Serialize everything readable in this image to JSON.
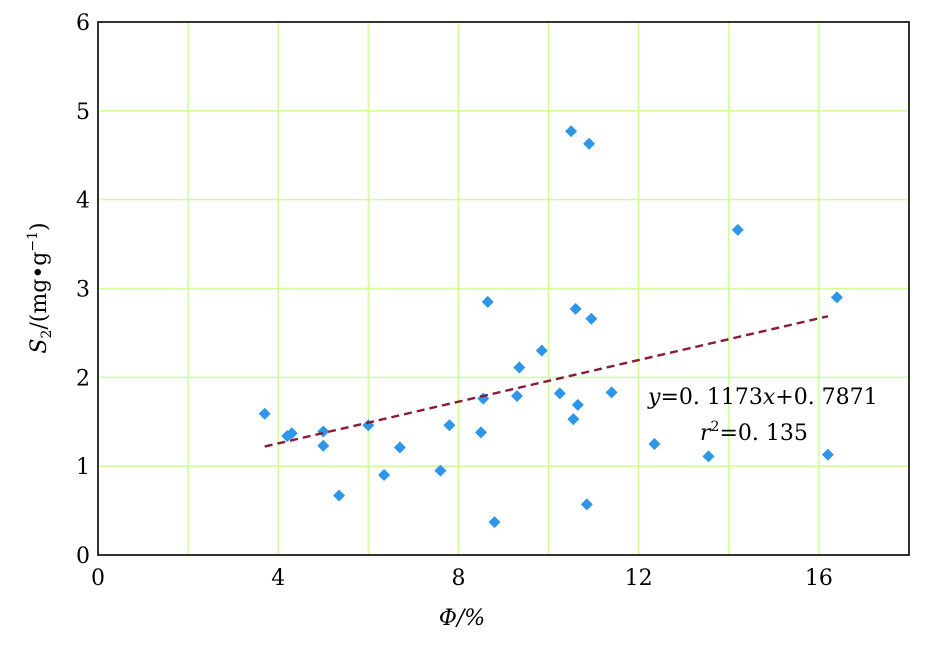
{
  "chart_data": {
    "type": "scatter",
    "xlim": [
      0,
      18
    ],
    "ylim": [
      0,
      6
    ],
    "x_ticks": [
      0,
      4,
      8,
      12,
      16
    ],
    "y_ticks": [
      0,
      1,
      2,
      3,
      4,
      5,
      6
    ],
    "x_grid": [
      2,
      4,
      6,
      8,
      10,
      12,
      14,
      16
    ],
    "y_grid": [
      1,
      2,
      3,
      4,
      5
    ],
    "grid": true,
    "grid_color": "#ccff99",
    "marker_color": "#2e96e8",
    "trend_color": "#8b1a3a",
    "xlabel": "Φ/%",
    "ylabel_main": "S",
    "ylabel_sub": "2",
    "ylabel_rest": "/(mg•g",
    "ylabel_sup": "−1",
    "ylabel_close": ")",
    "points": [
      {
        "x": 3.7,
        "y": 1.59
      },
      {
        "x": 4.2,
        "y": 1.34
      },
      {
        "x": 4.3,
        "y": 1.37
      },
      {
        "x": 5.0,
        "y": 1.39
      },
      {
        "x": 5.0,
        "y": 1.23
      },
      {
        "x": 5.35,
        "y": 0.67
      },
      {
        "x": 6.0,
        "y": 1.46
      },
      {
        "x": 6.35,
        "y": 0.9
      },
      {
        "x": 6.7,
        "y": 1.21
      },
      {
        "x": 7.6,
        "y": 0.95
      },
      {
        "x": 7.8,
        "y": 1.46
      },
      {
        "x": 8.5,
        "y": 1.38
      },
      {
        "x": 8.55,
        "y": 1.76
      },
      {
        "x": 8.65,
        "y": 2.85
      },
      {
        "x": 8.8,
        "y": 0.37
      },
      {
        "x": 9.3,
        "y": 1.79
      },
      {
        "x": 9.35,
        "y": 2.11
      },
      {
        "x": 9.85,
        "y": 2.3
      },
      {
        "x": 10.25,
        "y": 1.82
      },
      {
        "x": 10.5,
        "y": 4.77
      },
      {
        "x": 10.55,
        "y": 1.53
      },
      {
        "x": 10.6,
        "y": 2.77
      },
      {
        "x": 10.65,
        "y": 1.69
      },
      {
        "x": 10.85,
        "y": 0.57
      },
      {
        "x": 10.9,
        "y": 4.63
      },
      {
        "x": 10.95,
        "y": 2.66
      },
      {
        "x": 11.4,
        "y": 1.83
      },
      {
        "x": 12.35,
        "y": 1.25
      },
      {
        "x": 13.55,
        "y": 1.11
      },
      {
        "x": 14.2,
        "y": 3.66
      },
      {
        "x": 16.2,
        "y": 1.13
      },
      {
        "x": 16.4,
        "y": 2.9
      }
    ],
    "trendline": {
      "slope": 0.1173,
      "intercept": 0.7871,
      "x_start": 3.7,
      "x_end": 16.2,
      "style": "dashed"
    },
    "equation": {
      "y_var": "y",
      "eq_text": "=0. 1173",
      "x_var": "x",
      "eq_tail": "+0. 7871"
    },
    "r2": {
      "r_var": "r",
      "sup": "2",
      "value_text": "=0. 135"
    }
  }
}
